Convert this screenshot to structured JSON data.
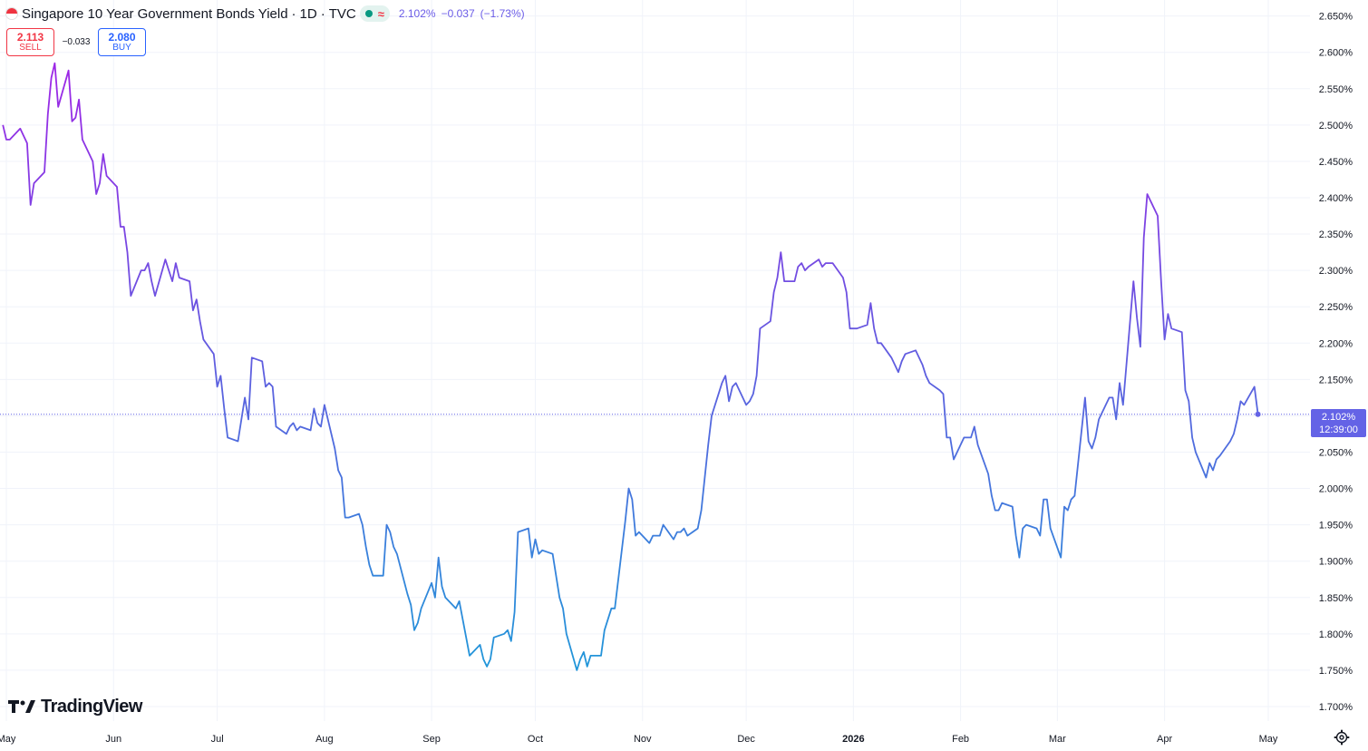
{
  "header": {
    "title": "Singapore 10 Year Government Bonds Yield",
    "interval": "1D",
    "source": "TVC",
    "dot": "·",
    "flag_icon": "singapore-flag",
    "status_icons": [
      "market-open-dot-icon",
      "delayed-data-wave-icon"
    ],
    "wave_glyph": "≈",
    "last_value": "2.102%",
    "change": "−0.037",
    "change_percent": "(−1.73%)"
  },
  "trade": {
    "sell_price": "2.113",
    "sell_label": "SELL",
    "spread": "−0.033",
    "buy_price": "2.080",
    "buy_label": "BUY"
  },
  "brand": {
    "name": "TradingView"
  },
  "price_label": {
    "value": "2.102%",
    "countdown": "12:39:00"
  },
  "colors": {
    "line_high": "#9c27e6",
    "line_low": "#2196d9",
    "label_bg": "#6463e6",
    "sell": "#f23645",
    "buy": "#2962ff",
    "grid": "#f0f3fa"
  },
  "chart_data": {
    "type": "line",
    "title": "Singapore 10 Year Government Bonds Yield · 1D · TVC",
    "xlabel": "",
    "ylabel": "",
    "ylim": [
      1.68,
      2.672
    ],
    "y_ticks": [
      "1.700%",
      "1.750%",
      "1.800%",
      "1.850%",
      "1.900%",
      "1.950%",
      "2.000%",
      "2.050%",
      "2.100%",
      "2.150%",
      "2.200%",
      "2.250%",
      "2.300%",
      "2.350%",
      "2.400%",
      "2.450%",
      "2.500%",
      "2.550%",
      "2.600%",
      "2.650%"
    ],
    "y_tick_values": [
      1.7,
      1.75,
      1.8,
      1.85,
      1.9,
      1.95,
      2.0,
      2.05,
      2.1,
      2.15,
      2.2,
      2.25,
      2.3,
      2.35,
      2.4,
      2.45,
      2.5,
      2.55,
      2.6,
      2.65
    ],
    "x_tick_labels": [
      "May",
      "Jun",
      "Jul",
      "Aug",
      "Sep",
      "Oct",
      "Nov",
      "Dec",
      "2026",
      "Feb",
      "Mar",
      "Apr",
      "May"
    ],
    "x_tick_dates": [
      "2025-05-01",
      "2025-06-01",
      "2025-07-01",
      "2025-08-01",
      "2025-09-01",
      "2025-10-01",
      "2025-11-01",
      "2025-12-01",
      "2026-01-01",
      "2026-02-01",
      "2026-03-01",
      "2026-04-01",
      "2026-05-01"
    ],
    "grid": true,
    "current_price_line": 2.102,
    "series": [
      {
        "x": [
          "2025-04-30",
          "2025-05-01",
          "2025-05-02",
          "2025-05-05",
          "2025-05-06",
          "2025-05-07",
          "2025-05-08",
          "2025-05-09",
          "2025-05-12",
          "2025-05-13",
          "2025-05-14",
          "2025-05-15",
          "2025-05-16",
          "2025-05-19",
          "2025-05-20",
          "2025-05-21",
          "2025-05-22",
          "2025-05-23",
          "2025-05-26",
          "2025-05-27",
          "2025-05-28",
          "2025-05-29",
          "2025-05-30",
          "2025-06-02",
          "2025-06-03",
          "2025-06-04",
          "2025-06-05",
          "2025-06-06",
          "2025-06-09",
          "2025-06-10",
          "2025-06-11",
          "2025-06-12",
          "2025-06-13",
          "2025-06-16",
          "2025-06-17",
          "2025-06-18",
          "2025-06-19",
          "2025-06-20",
          "2025-06-23",
          "2025-06-24",
          "2025-06-25",
          "2025-06-26",
          "2025-06-27",
          "2025-06-30",
          "2025-07-01",
          "2025-07-02",
          "2025-07-03",
          "2025-07-04",
          "2025-07-07",
          "2025-07-08",
          "2025-07-09",
          "2025-07-10",
          "2025-07-11",
          "2025-07-14",
          "2025-07-15",
          "2025-07-16",
          "2025-07-17",
          "2025-07-18",
          "2025-07-21",
          "2025-07-22",
          "2025-07-23",
          "2025-07-24",
          "2025-07-25",
          "2025-07-28",
          "2025-07-29",
          "2025-07-30",
          "2025-07-31",
          "2025-08-01",
          "2025-08-04",
          "2025-08-05",
          "2025-08-06",
          "2025-08-07",
          "2025-08-08",
          "2025-08-11",
          "2025-08-12",
          "2025-08-13",
          "2025-08-14",
          "2025-08-15",
          "2025-08-18",
          "2025-08-19",
          "2025-08-20",
          "2025-08-21",
          "2025-08-22",
          "2025-08-25",
          "2025-08-26",
          "2025-08-27",
          "2025-08-28",
          "2025-08-29",
          "2025-09-01",
          "2025-09-02",
          "2025-09-03",
          "2025-09-04",
          "2025-09-05",
          "2025-09-08",
          "2025-09-09",
          "2025-09-10",
          "2025-09-11",
          "2025-09-12",
          "2025-09-15",
          "2025-09-16",
          "2025-09-17",
          "2025-09-18",
          "2025-09-19",
          "2025-09-22",
          "2025-09-23",
          "2025-09-24",
          "2025-09-25",
          "2025-09-26",
          "2025-09-29",
          "2025-09-30",
          "2025-10-01",
          "2025-10-02",
          "2025-10-03",
          "2025-10-06",
          "2025-10-07",
          "2025-10-08",
          "2025-10-09",
          "2025-10-10",
          "2025-10-13",
          "2025-10-14",
          "2025-10-15",
          "2025-10-16",
          "2025-10-17",
          "2025-10-20",
          "2025-10-21",
          "2025-10-22",
          "2025-10-23",
          "2025-10-24",
          "2025-10-27",
          "2025-10-28",
          "2025-10-29",
          "2025-10-30",
          "2025-10-31",
          "2025-11-03",
          "2025-11-04",
          "2025-11-05",
          "2025-11-06",
          "2025-11-07",
          "2025-11-10",
          "2025-11-11",
          "2025-11-12",
          "2025-11-13",
          "2025-11-14",
          "2025-11-17",
          "2025-11-18",
          "2025-11-19",
          "2025-11-20",
          "2025-11-21",
          "2025-11-24",
          "2025-11-25",
          "2025-11-26",
          "2025-11-27",
          "2025-11-28",
          "2025-12-01",
          "2025-12-02",
          "2025-12-03",
          "2025-12-04",
          "2025-12-05",
          "2025-12-08",
          "2025-12-09",
          "2025-12-10",
          "2025-12-11",
          "2025-12-12",
          "2025-12-15",
          "2025-12-16",
          "2025-12-17",
          "2025-12-18",
          "2025-12-19",
          "2025-12-22",
          "2025-12-23",
          "2025-12-24",
          "2025-12-26",
          "2025-12-29",
          "2025-12-30",
          "2025-12-31",
          "2026-01-02",
          "2026-01-05",
          "2026-01-06",
          "2026-01-07",
          "2026-01-08",
          "2026-01-09",
          "2026-01-12",
          "2026-01-13",
          "2026-01-14",
          "2026-01-15",
          "2026-01-16",
          "2026-01-19",
          "2026-01-20",
          "2026-01-21",
          "2026-01-22",
          "2026-01-23",
          "2026-01-26",
          "2026-01-27",
          "2026-01-28",
          "2026-01-29",
          "2026-01-30",
          "2026-02-02",
          "2026-02-03",
          "2026-02-04",
          "2026-02-05",
          "2026-02-06",
          "2026-02-09",
          "2026-02-10",
          "2026-02-11",
          "2026-02-12",
          "2026-02-13",
          "2026-02-16",
          "2026-02-17",
          "2026-02-18",
          "2026-02-19",
          "2026-02-20",
          "2026-02-23",
          "2026-02-24",
          "2026-02-25",
          "2026-02-26",
          "2026-02-27",
          "2026-03-02",
          "2026-03-03",
          "2026-03-04",
          "2026-03-05",
          "2026-03-06",
          "2026-03-09",
          "2026-03-10",
          "2026-03-11",
          "2026-03-12",
          "2026-03-13",
          "2026-03-16",
          "2026-03-17",
          "2026-03-18",
          "2026-03-19",
          "2026-03-20",
          "2026-03-23",
          "2026-03-24",
          "2026-03-25",
          "2026-03-26",
          "2026-03-27",
          "2026-03-30",
          "2026-03-31",
          "2026-04-01",
          "2026-04-02",
          "2026-04-03",
          "2026-04-06",
          "2026-04-07",
          "2026-04-08",
          "2026-04-09",
          "2026-04-10",
          "2026-04-13",
          "2026-04-14",
          "2026-04-15",
          "2026-04-16",
          "2026-04-17",
          "2026-04-20",
          "2026-04-21",
          "2026-04-22",
          "2026-04-23",
          "2026-04-24",
          "2026-04-27",
          "2026-04-28"
        ],
        "values": [
          2.5,
          2.48,
          2.48,
          2.495,
          2.485,
          2.475,
          2.39,
          2.42,
          2.435,
          2.515,
          2.565,
          2.585,
          2.525,
          2.575,
          2.505,
          2.51,
          2.535,
          2.48,
          2.45,
          2.405,
          2.42,
          2.46,
          2.43,
          2.415,
          2.36,
          2.36,
          2.325,
          2.265,
          2.3,
          2.3,
          2.31,
          2.285,
          2.265,
          2.315,
          2.3,
          2.285,
          2.31,
          2.29,
          2.285,
          2.245,
          2.26,
          2.23,
          2.205,
          2.185,
          2.14,
          2.155,
          2.11,
          2.07,
          2.065,
          2.095,
          2.125,
          2.095,
          2.18,
          2.175,
          2.14,
          2.145,
          2.14,
          2.085,
          2.075,
          2.085,
          2.09,
          2.08,
          2.085,
          2.08,
          2.11,
          2.09,
          2.085,
          2.115,
          2.055,
          2.025,
          2.015,
          1.96,
          1.96,
          1.965,
          1.95,
          1.92,
          1.895,
          1.88,
          1.88,
          1.95,
          1.94,
          1.92,
          1.91,
          1.855,
          1.84,
          1.805,
          1.815,
          1.835,
          1.87,
          1.85,
          1.905,
          1.865,
          1.85,
          1.835,
          1.845,
          1.82,
          1.795,
          1.77,
          1.785,
          1.765,
          1.755,
          1.765,
          1.795,
          1.8,
          1.805,
          1.79,
          1.83,
          1.94,
          1.945,
          1.905,
          1.93,
          1.91,
          1.915,
          1.91,
          1.88,
          1.85,
          1.835,
          1.8,
          1.75,
          1.765,
          1.775,
          1.755,
          1.77,
          1.77,
          1.805,
          1.82,
          1.835,
          1.835,
          1.955,
          2.0,
          1.985,
          1.935,
          1.94,
          1.925,
          1.935,
          1.935,
          1.935,
          1.95,
          1.93,
          1.94,
          1.94,
          1.945,
          1.935,
          1.945,
          1.97,
          2.015,
          2.06,
          2.1,
          2.145,
          2.155,
          2.12,
          2.14,
          2.145,
          2.115,
          2.12,
          2.13,
          2.155,
          2.22,
          2.23,
          2.27,
          2.29,
          2.325,
          2.285,
          2.285,
          2.305,
          2.31,
          2.3,
          2.305,
          2.315,
          2.305,
          2.31,
          2.31,
          2.29,
          2.27,
          2.22,
          2.22,
          2.225,
          2.255,
          2.22,
          2.2,
          2.2,
          2.18,
          2.17,
          2.16,
          2.175,
          2.185,
          2.19,
          2.18,
          2.17,
          2.155,
          2.145,
          2.135,
          2.13,
          2.07,
          2.07,
          2.04,
          2.07,
          2.07,
          2.07,
          2.085,
          2.06,
          2.02,
          1.99,
          1.97,
          1.97,
          1.98,
          1.975,
          1.935,
          1.905,
          1.945,
          1.95,
          1.945,
          1.935,
          1.985,
          1.985,
          1.945,
          1.905,
          1.975,
          1.97,
          1.985,
          1.99,
          2.125,
          2.065,
          2.055,
          2.07,
          2.095,
          2.125,
          2.125,
          2.095,
          2.145,
          2.115,
          2.285,
          2.235,
          2.195,
          2.345,
          2.405,
          2.375,
          2.285,
          2.205,
          2.24,
          2.22,
          2.215,
          2.135,
          2.12,
          2.07,
          2.05,
          2.015,
          2.035,
          2.025,
          2.04,
          2.045,
          2.065,
          2.075,
          2.095,
          2.12,
          2.115,
          2.14,
          2.102
        ]
      }
    ]
  }
}
